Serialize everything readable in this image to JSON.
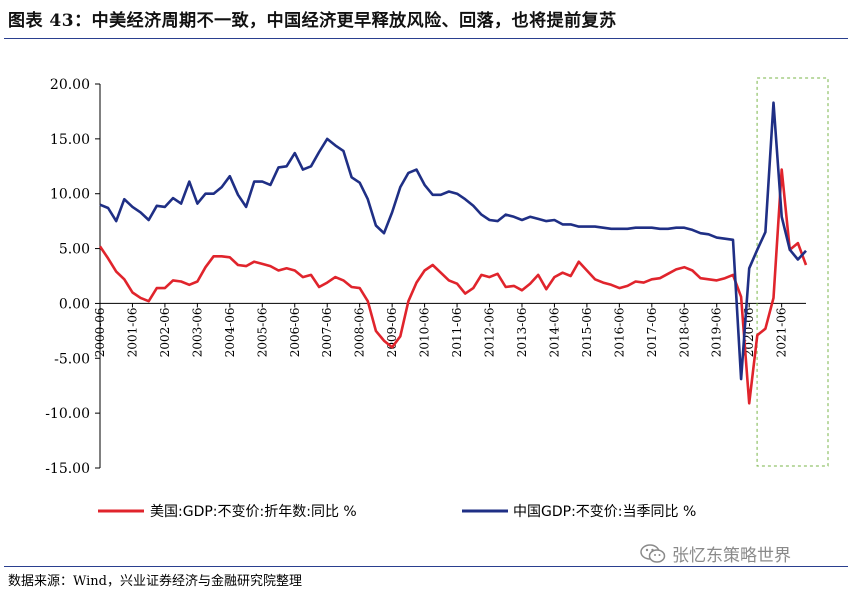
{
  "header": {
    "title": "图表 43：中美经济周期不一致，中国经济更早释放风险、回落，也将提前复苏"
  },
  "footer": {
    "source": "数据来源：Wind，兴业证券经济与金融研究院整理",
    "watermark": "张忆东策略世界"
  },
  "icons": {
    "watermark": "wechat-icon"
  },
  "chart_data": {
    "type": "line",
    "title": "",
    "xlabel": "",
    "ylabel": "",
    "ylim": [
      -15,
      20
    ],
    "yticks": [
      "20.00",
      "15.00",
      "10.00",
      "5.00",
      "0.00",
      "-5.00",
      "-10.00",
      "-15.00"
    ],
    "xticks": [
      "2000-06",
      "2001-06",
      "2002-06",
      "2003-06",
      "2004-06",
      "2005-06",
      "2006-06",
      "2007-06",
      "2008-06",
      "2009-06",
      "2010-06",
      "2011-06",
      "2012-06",
      "2013-06",
      "2014-06",
      "2015-06",
      "2016-06",
      "2017-06",
      "2018-06",
      "2019-06",
      "2020-06",
      "2021-06"
    ],
    "x_start": 2000.25,
    "x_end": 2022.0,
    "highlight_box": {
      "x_from": 2020.0,
      "x_to": 2022.0,
      "style": "dashed",
      "color": "#7ab648"
    },
    "legend_position": "bottom",
    "series": [
      {
        "name": "美国:GDP:不变价:折年数:同比 %",
        "color": "#e0242c",
        "x": [
          2000.25,
          2000.5,
          2000.75,
          2001.0,
          2001.25,
          2001.5,
          2001.75,
          2002.0,
          2002.25,
          2002.5,
          2002.75,
          2003.0,
          2003.25,
          2003.5,
          2003.75,
          2004.0,
          2004.25,
          2004.5,
          2004.75,
          2005.0,
          2005.25,
          2005.5,
          2005.75,
          2006.0,
          2006.25,
          2006.5,
          2006.75,
          2007.0,
          2007.25,
          2007.5,
          2007.75,
          2008.0,
          2008.25,
          2008.5,
          2008.75,
          2009.0,
          2009.25,
          2009.5,
          2009.75,
          2010.0,
          2010.25,
          2010.5,
          2010.75,
          2011.0,
          2011.25,
          2011.5,
          2011.75,
          2012.0,
          2012.25,
          2012.5,
          2012.75,
          2013.0,
          2013.25,
          2013.5,
          2013.75,
          2014.0,
          2014.25,
          2014.5,
          2014.75,
          2015.0,
          2015.25,
          2015.5,
          2015.75,
          2016.0,
          2016.25,
          2016.5,
          2016.75,
          2017.0,
          2017.25,
          2017.5,
          2017.75,
          2018.0,
          2018.25,
          2018.5,
          2018.75,
          2019.0,
          2019.25,
          2019.5,
          2019.75,
          2020.0,
          2020.25,
          2020.5,
          2020.75,
          2021.0,
          2021.25,
          2021.5,
          2021.75,
          2022.0
        ],
        "values": [
          5.2,
          4.1,
          2.9,
          2.2,
          1.0,
          0.5,
          0.2,
          1.4,
          1.4,
          2.1,
          2.0,
          1.7,
          2.0,
          3.3,
          4.3,
          4.3,
          4.2,
          3.5,
          3.4,
          3.8,
          3.6,
          3.4,
          3.0,
          3.2,
          3.0,
          2.4,
          2.6,
          1.5,
          1.9,
          2.4,
          2.1,
          1.5,
          1.4,
          0.2,
          -2.5,
          -3.4,
          -4.0,
          -3.0,
          0.2,
          1.9,
          3.0,
          3.5,
          2.8,
          2.1,
          1.8,
          0.9,
          1.4,
          2.6,
          2.4,
          2.7,
          1.5,
          1.6,
          1.2,
          1.8,
          2.6,
          1.3,
          2.4,
          2.8,
          2.5,
          3.8,
          3.0,
          2.2,
          1.9,
          1.7,
          1.4,
          1.6,
          2.0,
          1.9,
          2.2,
          2.3,
          2.7,
          3.1,
          3.3,
          3.0,
          2.3,
          2.2,
          2.1,
          2.3,
          2.6,
          0.6,
          -9.1,
          -2.9,
          -2.3,
          0.5,
          12.2,
          4.9,
          5.5,
          3.5
        ]
      },
      {
        "name": "中国GDP:不变价:当季同比 %",
        "color": "#1f2f85",
        "x": [
          2000.25,
          2000.5,
          2000.75,
          2001.0,
          2001.25,
          2001.5,
          2001.75,
          2002.0,
          2002.25,
          2002.5,
          2002.75,
          2003.0,
          2003.25,
          2003.5,
          2003.75,
          2004.0,
          2004.25,
          2004.5,
          2004.75,
          2005.0,
          2005.25,
          2005.5,
          2005.75,
          2006.0,
          2006.25,
          2006.5,
          2006.75,
          2007.0,
          2007.25,
          2007.5,
          2007.75,
          2008.0,
          2008.25,
          2008.5,
          2008.75,
          2009.0,
          2009.25,
          2009.5,
          2009.75,
          2010.0,
          2010.25,
          2010.5,
          2010.75,
          2011.0,
          2011.25,
          2011.5,
          2011.75,
          2012.0,
          2012.25,
          2012.5,
          2012.75,
          2013.0,
          2013.25,
          2013.5,
          2013.75,
          2014.0,
          2014.25,
          2014.5,
          2014.75,
          2015.0,
          2015.25,
          2015.5,
          2015.75,
          2016.0,
          2016.25,
          2016.5,
          2016.75,
          2017.0,
          2017.25,
          2017.5,
          2017.75,
          2018.0,
          2018.25,
          2018.5,
          2018.75,
          2019.0,
          2019.25,
          2019.5,
          2019.75,
          2020.0,
          2020.25,
          2020.5,
          2020.75,
          2021.0,
          2021.25,
          2021.5,
          2021.75,
          2022.0
        ],
        "values": [
          9.0,
          8.7,
          7.5,
          9.5,
          8.8,
          8.3,
          7.6,
          8.9,
          8.8,
          9.6,
          9.1,
          11.1,
          9.1,
          10.0,
          10.0,
          10.6,
          11.6,
          9.9,
          8.8,
          11.1,
          11.1,
          10.8,
          12.4,
          12.5,
          13.7,
          12.2,
          12.5,
          13.8,
          15.0,
          14.4,
          13.9,
          11.5,
          11.0,
          9.5,
          7.1,
          6.4,
          8.3,
          10.6,
          11.9,
          12.2,
          10.8,
          9.9,
          9.9,
          10.2,
          10.0,
          9.5,
          8.9,
          8.1,
          7.6,
          7.5,
          8.1,
          7.9,
          7.6,
          7.9,
          7.7,
          7.5,
          7.6,
          7.2,
          7.2,
          7.0,
          7.0,
          7.0,
          6.9,
          6.8,
          6.8,
          6.8,
          6.9,
          6.9,
          6.9,
          6.8,
          6.8,
          6.9,
          6.9,
          6.7,
          6.4,
          6.3,
          6.0,
          5.9,
          5.8,
          -6.9,
          3.2,
          4.9,
          6.5,
          18.3,
          7.9,
          4.9,
          4.0,
          4.8
        ]
      }
    ]
  }
}
